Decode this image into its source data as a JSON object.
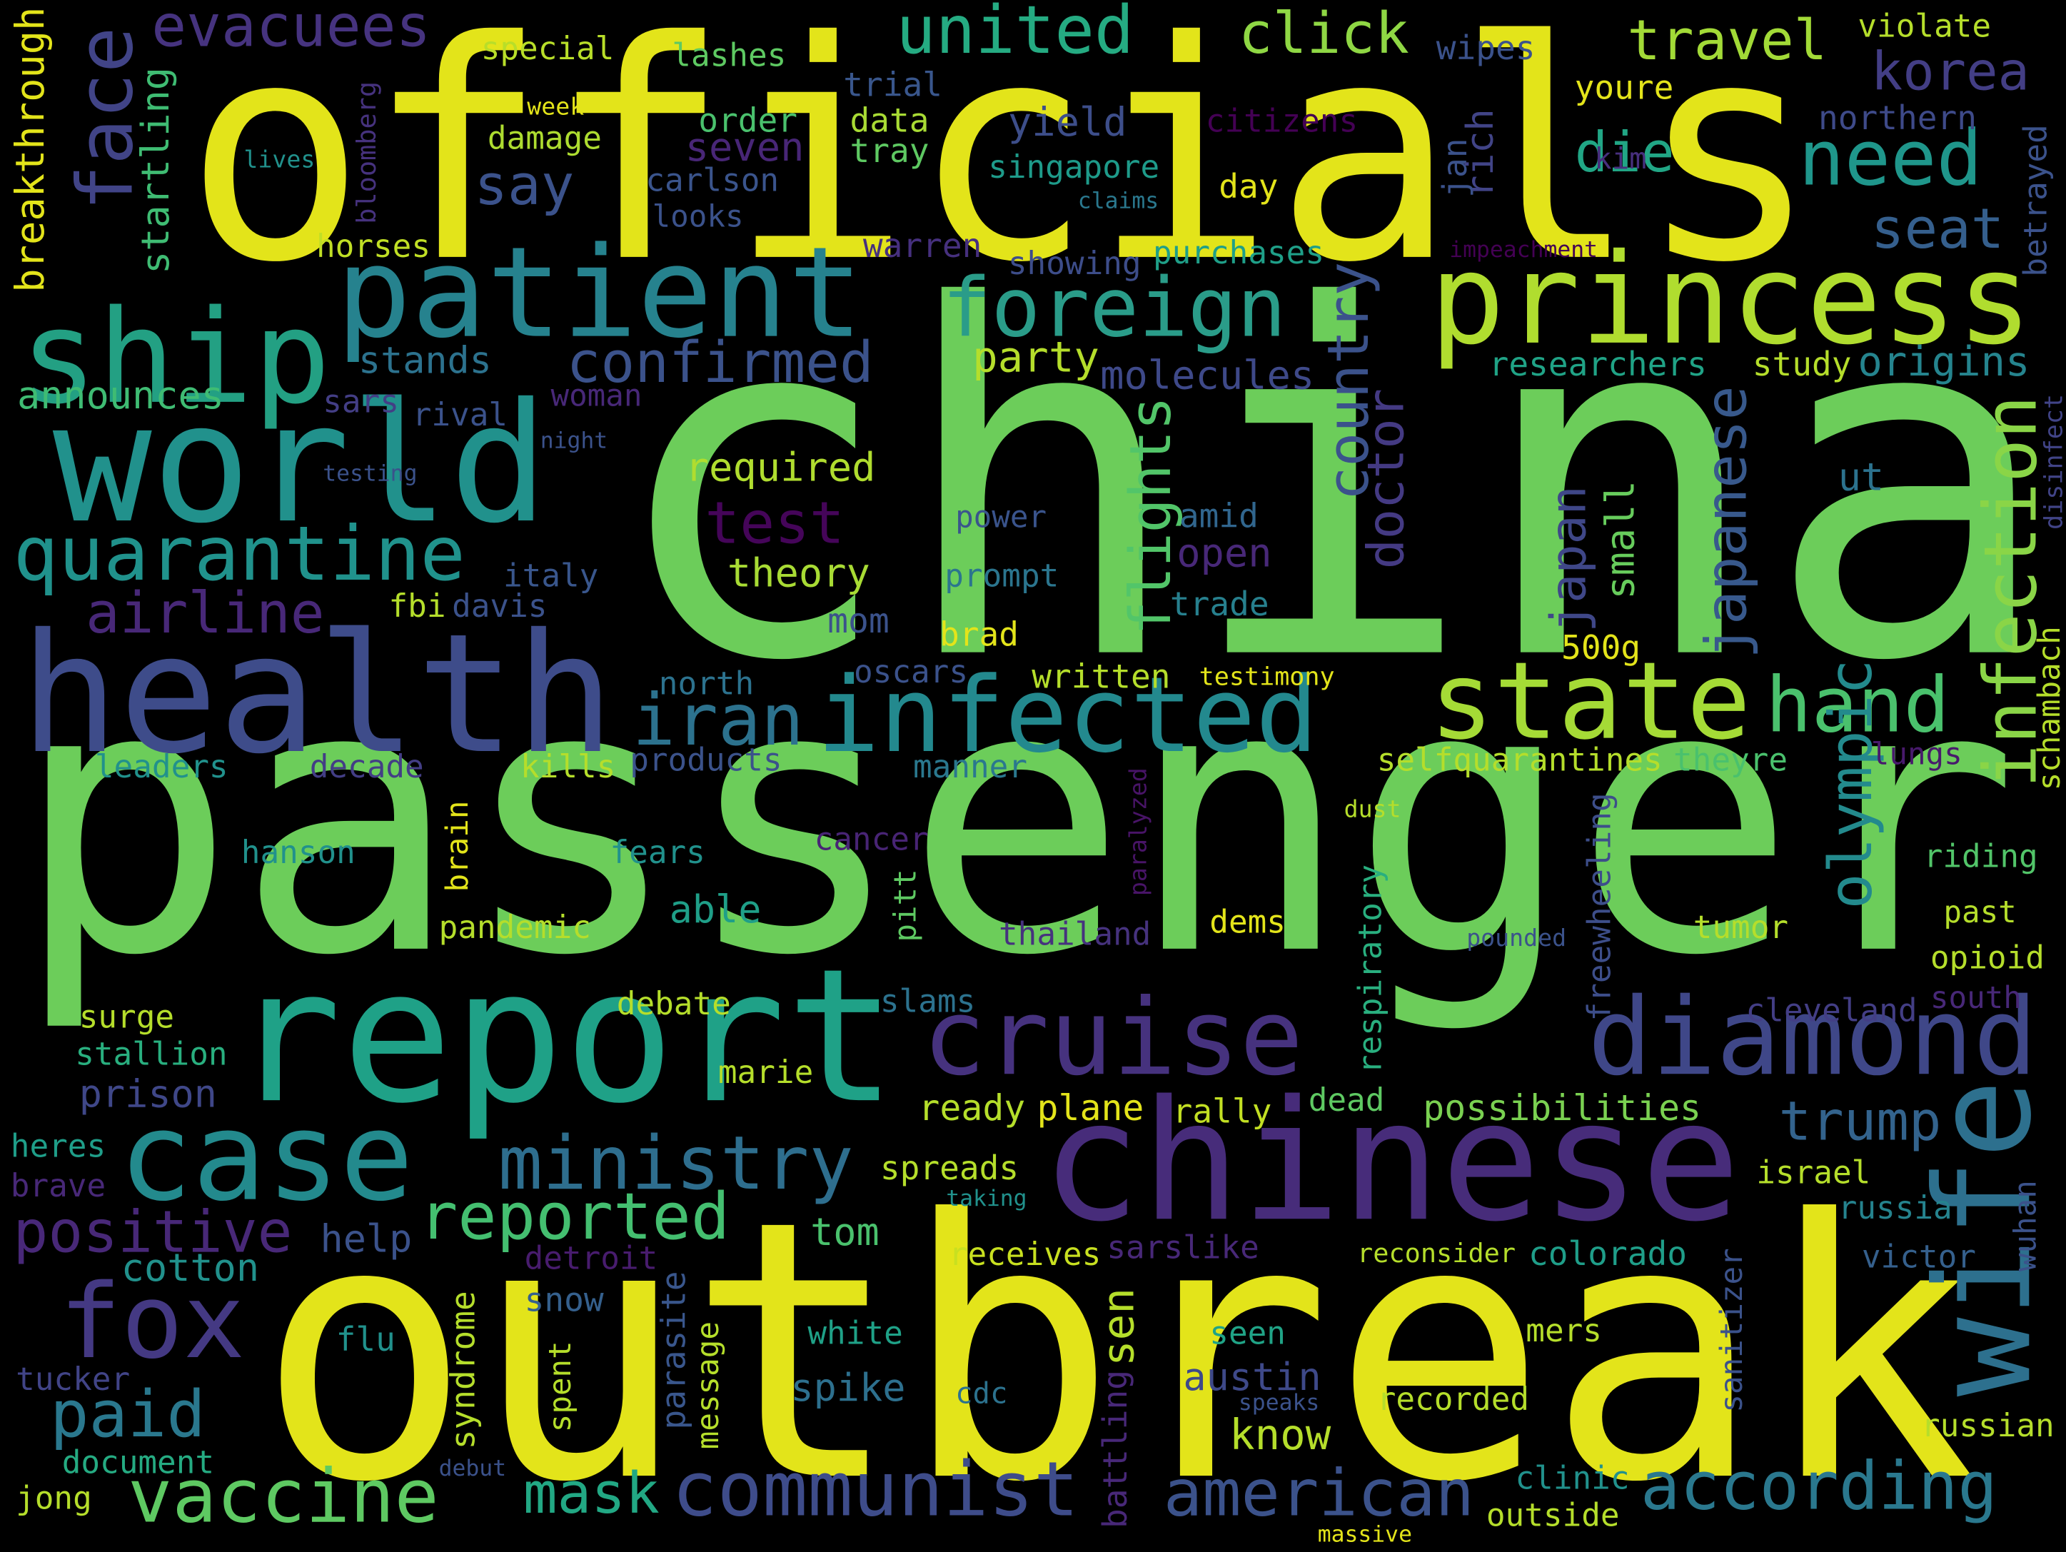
{
  "words": [
    {
      "text": "officials",
      "color": "#e3e41a"
    },
    {
      "text": "china",
      "color": "#6ccd5a"
    },
    {
      "text": "passenger",
      "color": "#6ccd5a"
    },
    {
      "text": "outbreak",
      "color": "#e3e41a"
    },
    {
      "text": "health",
      "color": "#3e4c8a"
    },
    {
      "text": "report",
      "color": "#1fa187"
    },
    {
      "text": "patient",
      "color": "#26828e"
    },
    {
      "text": "ship",
      "color": "#23a083"
    },
    {
      "text": "world",
      "color": "#21918c"
    },
    {
      "text": "princess",
      "color": "#b0dd2f"
    },
    {
      "text": "foreign",
      "color": "#2a9c89"
    },
    {
      "text": "infected",
      "color": "#23898e"
    },
    {
      "text": "state",
      "color": "#a5db36"
    },
    {
      "text": "hand",
      "color": "#4ac16d"
    },
    {
      "text": "iran",
      "color": "#2c728e"
    },
    {
      "text": "cruise",
      "color": "#46327e"
    },
    {
      "text": "diamond",
      "color": "#3f4788"
    },
    {
      "text": "chinese",
      "color": "#472c7a"
    },
    {
      "text": "case",
      "color": "#238a8d"
    },
    {
      "text": "fox",
      "color": "#443983"
    },
    {
      "text": "wife",
      "color": "#2d708e"
    },
    {
      "text": "confirmed",
      "color": "#3b528b"
    },
    {
      "text": "quarantine",
      "color": "#20928c"
    },
    {
      "text": "airline",
      "color": "#482878"
    },
    {
      "text": "evacuees",
      "color": "#46337f"
    },
    {
      "text": "face",
      "color": "#414487"
    },
    {
      "text": "united",
      "color": "#25ab82"
    },
    {
      "text": "click",
      "color": "#8fd744"
    },
    {
      "text": "travel",
      "color": "#a2da37"
    },
    {
      "text": "korea",
      "color": "#433e85"
    },
    {
      "text": "need",
      "color": "#1f968b"
    },
    {
      "text": "die",
      "color": "#21a685"
    },
    {
      "text": "seat",
      "color": "#355f8d"
    },
    {
      "text": "say",
      "color": "#3b528b"
    },
    {
      "text": "seven",
      "color": "#482677"
    },
    {
      "text": "special",
      "color": "#b8de29"
    },
    {
      "text": "lashes",
      "color": "#5ec962"
    },
    {
      "text": "trial",
      "color": "#39568c"
    },
    {
      "text": "order",
      "color": "#4ac16d"
    },
    {
      "text": "data",
      "color": "#a8db34"
    },
    {
      "text": "tray",
      "color": "#5ec962"
    },
    {
      "text": "carlson",
      "color": "#3a548c"
    },
    {
      "text": "looks",
      "color": "#3b528b"
    },
    {
      "text": "damage",
      "color": "#addc30"
    },
    {
      "text": "week",
      "color": "#e3e41a"
    },
    {
      "text": "lives",
      "color": "#21918c"
    },
    {
      "text": "bloomberg",
      "color": "#46327e"
    },
    {
      "text": "startling",
      "color": "#3fbc73"
    },
    {
      "text": "breakthrough",
      "color": "#e3e41a"
    },
    {
      "text": "horses",
      "color": "#c0df25"
    },
    {
      "text": "yield",
      "color": "#3d4e8a"
    },
    {
      "text": "singapore",
      "color": "#1e9b8a"
    },
    {
      "text": "citizens",
      "color": "#440154"
    },
    {
      "text": "claims",
      "color": "#2a788e"
    },
    {
      "text": "day",
      "color": "#e3e41a"
    },
    {
      "text": "warren",
      "color": "#46307e"
    },
    {
      "text": "showing",
      "color": "#3d4d8a"
    },
    {
      "text": "purchases",
      "color": "#1f9f88"
    },
    {
      "text": "impeachment",
      "color": "#440154"
    },
    {
      "text": "violate",
      "color": "#b5de2b"
    },
    {
      "text": "wipes",
      "color": "#3b528b"
    },
    {
      "text": "youre",
      "color": "#e3e41a"
    },
    {
      "text": "northern",
      "color": "#3e4a89"
    },
    {
      "text": "jan",
      "color": "#3b528b"
    },
    {
      "text": "rich",
      "color": "#414487"
    },
    {
      "text": "kim",
      "color": "#472f7d"
    },
    {
      "text": "betrayed",
      "color": "#3b528b"
    },
    {
      "text": "researchers",
      "color": "#20a386"
    },
    {
      "text": "study",
      "color": "#b5de2b"
    },
    {
      "text": "origins",
      "color": "#25848e"
    },
    {
      "text": "country",
      "color": "#3b528b"
    },
    {
      "text": "doctor",
      "color": "#443a83"
    },
    {
      "text": "party",
      "color": "#b5de2b"
    },
    {
      "text": "molecules",
      "color": "#3e4989"
    },
    {
      "text": "flights",
      "color": "#52c569"
    },
    {
      "text": "required",
      "color": "#b0dd2f"
    },
    {
      "text": "test",
      "color": "#450559"
    },
    {
      "text": "theory",
      "color": "#a8db34"
    },
    {
      "text": "power",
      "color": "#3a548c"
    },
    {
      "text": "amid",
      "color": "#31668e"
    },
    {
      "text": "open",
      "color": "#482878"
    },
    {
      "text": "prompt",
      "color": "#2b758e"
    },
    {
      "text": "trade",
      "color": "#27808e"
    },
    {
      "text": "brad",
      "color": "#e3e41a"
    },
    {
      "text": "mom",
      "color": "#3b528b"
    },
    {
      "text": "oscars",
      "color": "#3b528b"
    },
    {
      "text": "written",
      "color": "#b5de2b"
    },
    {
      "text": "testimony",
      "color": "#e3e41a"
    },
    {
      "text": "japan",
      "color": "#3f4788"
    },
    {
      "text": "small",
      "color": "#67cc5c"
    },
    {
      "text": "500g",
      "color": "#e3e41a"
    },
    {
      "text": "japanese",
      "color": "#38598c"
    },
    {
      "text": "ut",
      "color": "#2c728e"
    },
    {
      "text": "infection",
      "color": "#8ad547"
    },
    {
      "text": "olympic",
      "color": "#238a8d"
    },
    {
      "text": "disinfect",
      "color": "#414487"
    },
    {
      "text": "schambach",
      "color": "#b5de2b"
    },
    {
      "text": "lungs",
      "color": "#481a6c"
    },
    {
      "text": "selfquarantines",
      "color": "#b5de2b"
    },
    {
      "text": "theyre",
      "color": "#4ac16d"
    },
    {
      "text": "freewheeling",
      "color": "#3d4e8a"
    },
    {
      "text": "respiratory",
      "color": "#29af7f"
    },
    {
      "text": "dust",
      "color": "#b5de2b"
    },
    {
      "text": "paralyzed",
      "color": "#481467"
    },
    {
      "text": "riding",
      "color": "#52c569"
    },
    {
      "text": "past",
      "color": "#b5de2b"
    },
    {
      "text": "opioid",
      "color": "#b5de2b"
    },
    {
      "text": "south",
      "color": "#482878"
    },
    {
      "text": "cleveland",
      "color": "#433e85"
    },
    {
      "text": "tumor",
      "color": "#b5de2b"
    },
    {
      "text": "pounded",
      "color": "#3b528b"
    },
    {
      "text": "dems",
      "color": "#e3e41a"
    },
    {
      "text": "thailand",
      "color": "#46327e"
    },
    {
      "text": "cancer",
      "color": "#482475"
    },
    {
      "text": "pitt",
      "color": "#5ec962"
    },
    {
      "text": "slams",
      "color": "#2c728e"
    },
    {
      "text": "debate",
      "color": "#b5de2b"
    },
    {
      "text": "marie",
      "color": "#b5de2b"
    },
    {
      "text": "ready",
      "color": "#b5de2b"
    },
    {
      "text": "plane",
      "color": "#e3e41a"
    },
    {
      "text": "rally",
      "color": "#c2df23"
    },
    {
      "text": "dead",
      "color": "#5ec962"
    },
    {
      "text": "possibilities",
      "color": "#7ad151"
    },
    {
      "text": "trump",
      "color": "#33638d"
    },
    {
      "text": "israel",
      "color": "#b5de2b"
    },
    {
      "text": "russia",
      "color": "#25838e"
    },
    {
      "text": "wuhan",
      "color": "#3b528b"
    },
    {
      "text": "victor",
      "color": "#35608d"
    },
    {
      "text": "colorado",
      "color": "#1f9e89"
    },
    {
      "text": "reconsider",
      "color": "#b5de2b"
    },
    {
      "text": "sanitizer",
      "color": "#3b528b"
    },
    {
      "text": "sarslike",
      "color": "#482878"
    },
    {
      "text": "receives",
      "color": "#c8e020"
    },
    {
      "text": "spreads",
      "color": "#b5de2b"
    },
    {
      "text": "taking",
      "color": "#21918c"
    },
    {
      "text": "detroit",
      "color": "#481c6e"
    },
    {
      "text": "tom",
      "color": "#4ac16d"
    },
    {
      "text": "help",
      "color": "#3b528b"
    },
    {
      "text": "cotton",
      "color": "#21918c"
    },
    {
      "text": "reported",
      "color": "#44bf70"
    },
    {
      "text": "ministry",
      "color": "#2e6e8e"
    },
    {
      "text": "positive",
      "color": "#482878"
    },
    {
      "text": "sen",
      "color": "#b5de2b"
    },
    {
      "text": "austin",
      "color": "#3e4989"
    },
    {
      "text": "seen",
      "color": "#20a386"
    },
    {
      "text": "mers",
      "color": "#b5de2b"
    },
    {
      "text": "recorded",
      "color": "#b5de2b"
    },
    {
      "text": "know",
      "color": "#b5de2b"
    },
    {
      "text": "speaks",
      "color": "#3b528b"
    },
    {
      "text": "cdc",
      "color": "#2c728e"
    },
    {
      "text": "spike",
      "color": "#2d708e"
    },
    {
      "text": "white",
      "color": "#1fa187"
    },
    {
      "text": "battling",
      "color": "#482878"
    },
    {
      "text": "message",
      "color": "#b5de2b"
    },
    {
      "text": "parasite",
      "color": "#39568c"
    },
    {
      "text": "spent",
      "color": "#b5de2b"
    },
    {
      "text": "syndrome",
      "color": "#b5de2b"
    },
    {
      "text": "snow",
      "color": "#35608d"
    },
    {
      "text": "flu",
      "color": "#21918c"
    },
    {
      "text": "tucker",
      "color": "#414487"
    },
    {
      "text": "debut",
      "color": "#3b528b"
    },
    {
      "text": "document",
      "color": "#25ab82"
    },
    {
      "text": "jong",
      "color": "#b5de2b"
    },
    {
      "text": "paid",
      "color": "#2a788e"
    },
    {
      "text": "vaccine",
      "color": "#5ec962"
    },
    {
      "text": "mask",
      "color": "#22a884"
    },
    {
      "text": "communist",
      "color": "#3e4c8a"
    },
    {
      "text": "american",
      "color": "#3b528b"
    },
    {
      "text": "according",
      "color": "#2a788e"
    },
    {
      "text": "clinic",
      "color": "#21918c"
    },
    {
      "text": "outside",
      "color": "#b5de2b"
    },
    {
      "text": "massive",
      "color": "#e3e41a"
    },
    {
      "text": "russian",
      "color": "#b5de2b"
    },
    {
      "text": "brain",
      "color": "#e3e41a"
    },
    {
      "text": "pandemic",
      "color": "#b5de2b"
    },
    {
      "text": "able",
      "color": "#1f9f88"
    },
    {
      "text": "fears",
      "color": "#21918c"
    },
    {
      "text": "hanson",
      "color": "#21918c"
    },
    {
      "text": "kills",
      "color": "#b5de2b"
    },
    {
      "text": "products",
      "color": "#3b528b"
    },
    {
      "text": "manner",
      "color": "#2a788e"
    },
    {
      "text": "decade",
      "color": "#433e85"
    },
    {
      "text": "leaders",
      "color": "#21918c"
    },
    {
      "text": "north",
      "color": "#2c728e"
    },
    {
      "text": "fbi",
      "color": "#b5de2b"
    },
    {
      "text": "davis",
      "color": "#3b528b"
    },
    {
      "text": "italy",
      "color": "#39568c"
    },
    {
      "text": "testing",
      "color": "#3b528b"
    },
    {
      "text": "night",
      "color": "#3b528b"
    },
    {
      "text": "rival",
      "color": "#3b528b"
    },
    {
      "text": "sars",
      "color": "#433e85"
    },
    {
      "text": "woman",
      "color": "#482878"
    },
    {
      "text": "stands",
      "color": "#2c728e"
    },
    {
      "text": "announces",
      "color": "#3fbc73"
    },
    {
      "text": "surge",
      "color": "#b5de2b"
    },
    {
      "text": "stallion",
      "color": "#29af7f"
    },
    {
      "text": "prison",
      "color": "#3f4788"
    },
    {
      "text": "heres",
      "color": "#1f9e89"
    },
    {
      "text": "brave",
      "color": "#482878"
    }
  ]
}
